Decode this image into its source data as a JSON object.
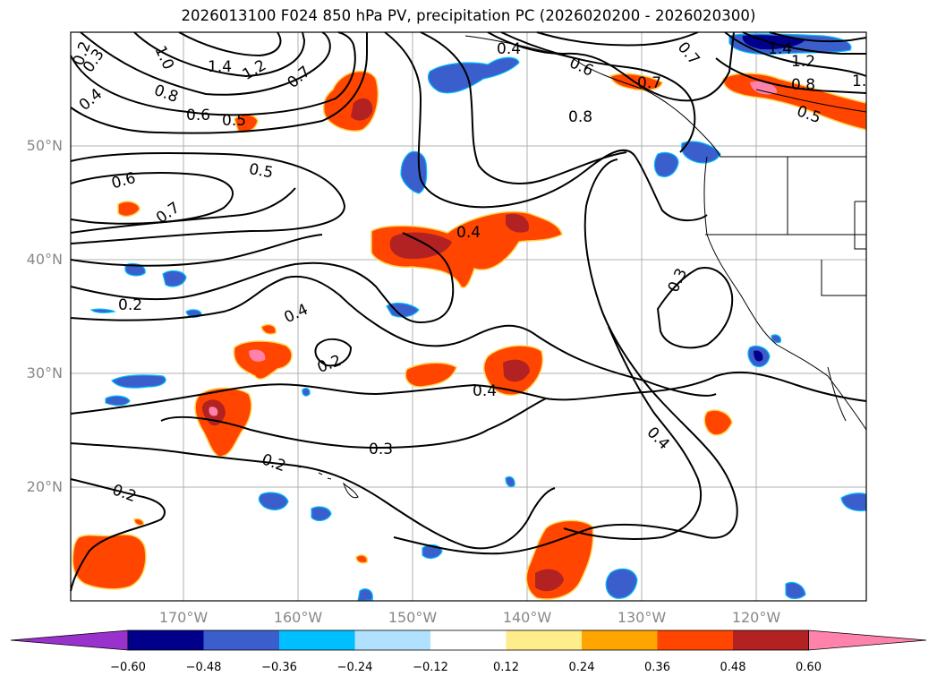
{
  "title": "2026013100 F024 850 hPa PV, precipitation PC (2026020200 - 2026020300)",
  "axes": {
    "lat_labels": [
      "50°N",
      "40°N",
      "30°N",
      "20°N"
    ],
    "lon_labels": [
      "170°W",
      "160°W",
      "150°W",
      "140°W",
      "130°W",
      "120°W"
    ]
  },
  "colorbar": {
    "ticks": [
      "−0.60",
      "−0.48",
      "−0.36",
      "−0.24",
      "−0.12",
      "0.12",
      "0.24",
      "0.36",
      "0.48",
      "0.60"
    ],
    "colors": [
      "#9932cc",
      "#00008b",
      "#3a5fcd",
      "#00bfff",
      "#b0e2ff",
      "#ffffff",
      "#ffec8b",
      "#ffa500",
      "#ff4500",
      "#b22222",
      "#ff82ab"
    ]
  },
  "contour_labels": {
    "pv_0_2": "0.2",
    "pv_0_3": "0.3",
    "pv_0_4": "0.4",
    "pv_0_5": "0.5",
    "pv_0_6": "0.6",
    "pv_0_7": "0.7",
    "pv_0_8": "0.8",
    "pv_1_0": "1.0",
    "pv_1_2": "1.2",
    "pv_1_4": "1.4",
    "pv_1_": "1."
  }
}
